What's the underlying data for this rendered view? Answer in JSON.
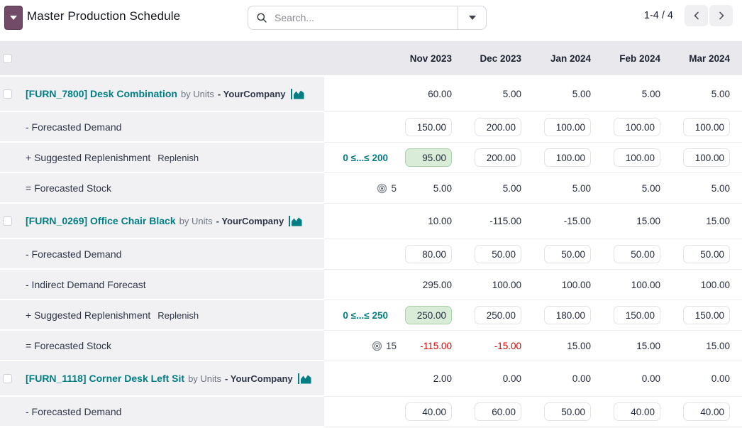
{
  "toolbar": {
    "menu_icon": "caret-down-icon",
    "title": "Master Production Schedule",
    "search": {
      "placeholder": "Search...",
      "icons": [
        "search-icon",
        "caret-down-icon"
      ]
    },
    "pager": {
      "range": "1-4 / 4",
      "prev_icon": "chevron-left-icon",
      "next_icon": "chevron-right-icon"
    }
  },
  "colors": {
    "brand": "#714B67",
    "teal": "#017E84",
    "replenish_highlight_bg": "#D8ECD8",
    "negative_text": "#DC0000",
    "header_bg": "#E8E8ED",
    "label_bg": "#F1F1F4"
  },
  "table": {
    "columns": [
      "Nov 2023",
      "Dec 2023",
      "Jan 2024",
      "Feb 2024",
      "Mar 2024"
    ],
    "products": [
      {
        "name": "[FURN_7800] Desk Combination",
        "by": "by Units",
        "company": "- YourCompany",
        "icon": "area-chart-icon",
        "values": [
          "60.00",
          "5.00",
          "5.00",
          "5.00",
          "5.00"
        ],
        "rows": [
          {
            "kind": "demand",
            "label": "- Forecasted Demand",
            "input": true,
            "cells": [
              "150.00",
              "200.00",
              "100.00",
              "100.00",
              "100.00"
            ]
          },
          {
            "kind": "replenish",
            "label": "+ Suggested Replenishment",
            "action": "Replenish",
            "range": "0 ≤...≤ 200",
            "input": true,
            "highlight_index": 0,
            "cells": [
              "95.00",
              "200.00",
              "100.00",
              "100.00",
              "100.00"
            ]
          },
          {
            "kind": "stock",
            "label": "= Forecasted Stock",
            "target": "5",
            "target_icon": "bullseye-icon",
            "cells": [
              "5.00",
              "5.00",
              "5.00",
              "5.00",
              "5.00"
            ]
          }
        ]
      },
      {
        "name": "[FURN_0269] Office Chair Black",
        "by": "by Units",
        "company": "- YourCompany",
        "icon": "area-chart-icon",
        "values": [
          "10.00",
          "-115.00",
          "-15.00",
          "15.00",
          "15.00"
        ],
        "rows": [
          {
            "kind": "demand",
            "label": "- Forecasted Demand",
            "input": true,
            "cells": [
              "80.00",
              "50.00",
              "50.00",
              "50.00",
              "50.00"
            ]
          },
          {
            "kind": "indirect",
            "label": "- Indirect Demand Forecast",
            "cells": [
              "295.00",
              "100.00",
              "100.00",
              "100.00",
              "100.00"
            ]
          },
          {
            "kind": "replenish",
            "label": "+ Suggested Replenishment",
            "action": "Replenish",
            "range": "0 ≤...≤ 250",
            "input": true,
            "highlight_index": 0,
            "cells": [
              "250.00",
              "250.00",
              "180.00",
              "150.00",
              "150.00"
            ]
          },
          {
            "kind": "stock",
            "label": "= Forecasted Stock",
            "target": "15",
            "target_icon": "bullseye-icon",
            "cells": [
              "-115.00",
              "-15.00",
              "15.00",
              "15.00",
              "15.00"
            ]
          }
        ]
      },
      {
        "name": "[FURN_1118] Corner Desk Left Sit",
        "by": "by Units",
        "company": "- YourCompany",
        "icon": "area-chart-icon",
        "values": [
          "2.00",
          "0.00",
          "0.00",
          "0.00",
          "0.00"
        ],
        "rows": [
          {
            "kind": "demand",
            "label": "- Forecasted Demand",
            "input": true,
            "cells": [
              "40.00",
              "60.00",
              "50.00",
              "40.00",
              "40.00"
            ]
          }
        ]
      }
    ]
  }
}
